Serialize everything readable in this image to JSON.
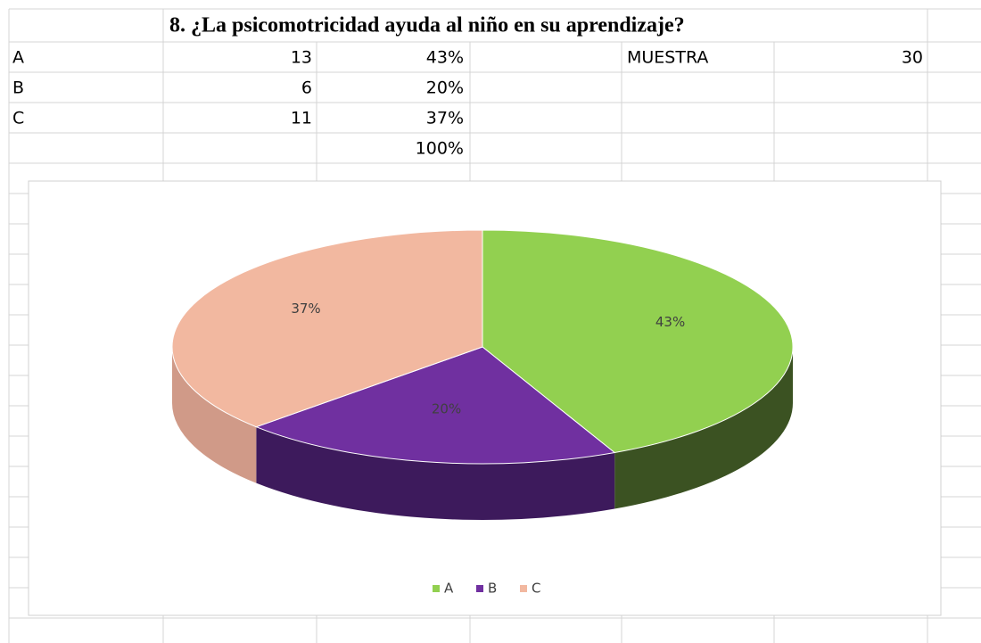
{
  "sheet": {
    "title": "8. ¿La psicomotricidad ayuda al niño en su aprendizaje?",
    "rows": [
      {
        "label": "A",
        "count": 13,
        "percent": "43%",
        "extra": "MUESTRA",
        "extra_value": 30
      },
      {
        "label": "B",
        "count": 6,
        "percent": "20%"
      },
      {
        "label": "C",
        "count": 11,
        "percent": "37%"
      },
      {
        "percent": "100%"
      }
    ]
  },
  "chart_data": {
    "type": "pie",
    "categories": [
      "A",
      "B",
      "C"
    ],
    "values": [
      43,
      20,
      37
    ],
    "value_labels": [
      "43%",
      "20%",
      "37%"
    ],
    "colors": [
      "#92d050",
      "#7030a0",
      "#f2b8a0"
    ],
    "side_colors": [
      "#3b5222",
      "#3d1a5c",
      "#d09a88"
    ],
    "legend": "bottom"
  }
}
